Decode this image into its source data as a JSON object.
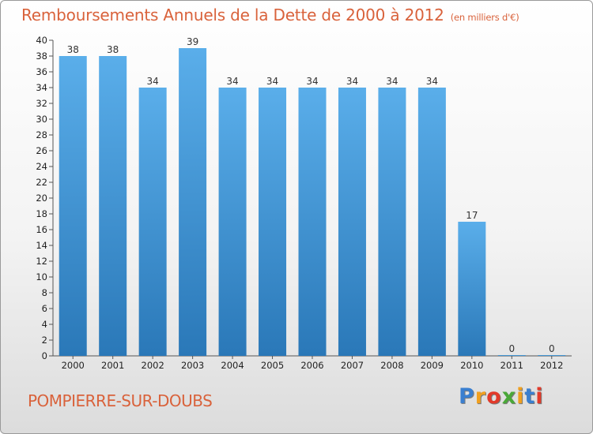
{
  "chart_data": {
    "type": "bar",
    "title": "Remboursements Annuels de la Dette de 2000 à 2012",
    "unit_note": "(en milliers d'€)",
    "categories": [
      "2000",
      "2001",
      "2002",
      "2003",
      "2004",
      "2005",
      "2006",
      "2007",
      "2008",
      "2009",
      "2010",
      "2011",
      "2012"
    ],
    "values": [
      38,
      38,
      34,
      39,
      34,
      34,
      34,
      34,
      34,
      34,
      17,
      0,
      0
    ],
    "ylim": [
      0,
      40
    ],
    "ytick_step": 2,
    "grid": false,
    "bar_color_top": "#5aaeea",
    "bar_color_bottom": "#2a78b8"
  },
  "footer": {
    "city": "POMPIERRE-SUR-DOUBS",
    "logo_letters": [
      {
        "ch": "P",
        "color": "#3a7fd0"
      },
      {
        "ch": "r",
        "color": "#f0a020"
      },
      {
        "ch": "o",
        "color": "#e23a2a"
      },
      {
        "ch": "x",
        "color": "#4aa838"
      },
      {
        "ch": "i",
        "color": "#f0a020"
      },
      {
        "ch": "t",
        "color": "#3a7fd0"
      },
      {
        "ch": "i",
        "color": "#e23a2a"
      }
    ]
  }
}
